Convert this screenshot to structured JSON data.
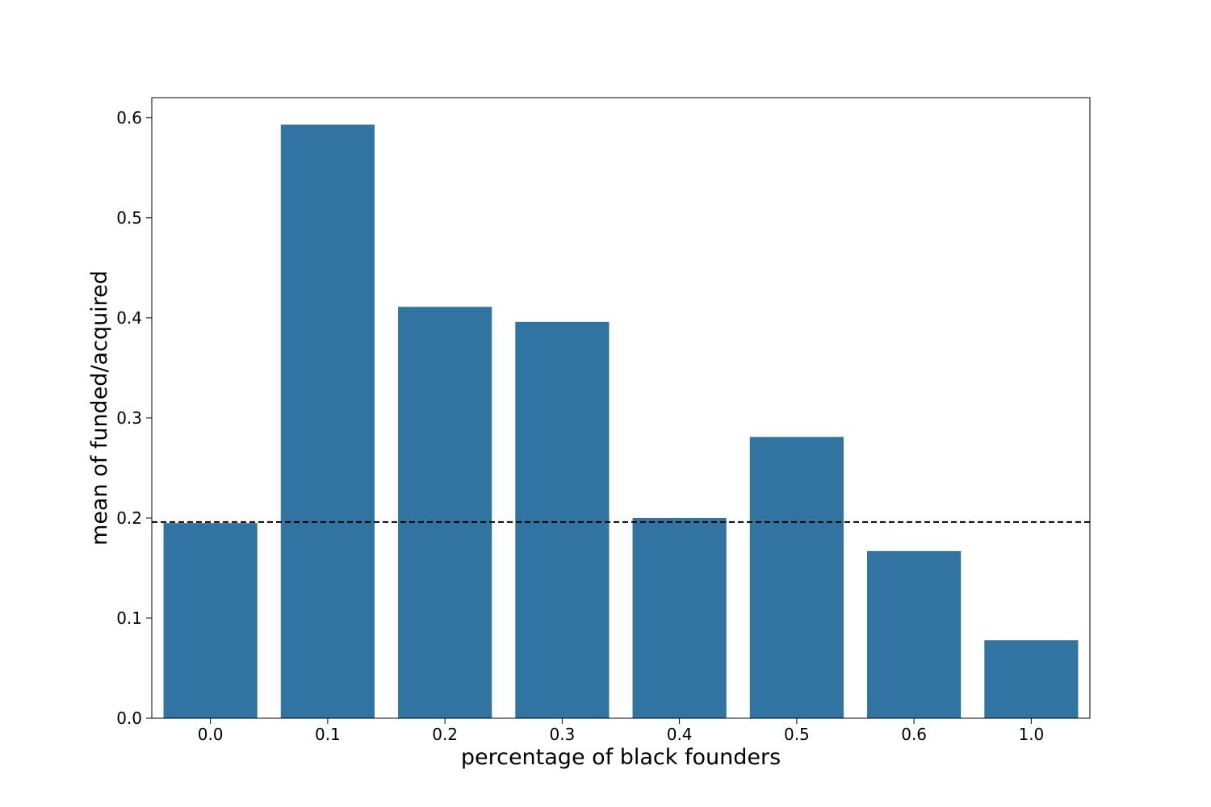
{
  "chart_data": {
    "type": "bar",
    "xlabel": "percentage of black founders",
    "ylabel": "mean of funded/acquired",
    "categories": [
      "0.0",
      "0.1",
      "0.2",
      "0.3",
      "0.4",
      "0.5",
      "0.6",
      "1.0"
    ],
    "values": [
      0.195,
      0.593,
      0.411,
      0.396,
      0.2,
      0.281,
      0.167,
      0.078
    ],
    "ylim": [
      0,
      0.62
    ],
    "yticks": [
      "0.0",
      "0.1",
      "0.2",
      "0.3",
      "0.4",
      "0.5",
      "0.6"
    ],
    "reference_line": {
      "value": 0.196,
      "style": "dashed",
      "color": "#000000"
    },
    "bar_color": "#3274a1",
    "grid": false,
    "legend": "none"
  }
}
